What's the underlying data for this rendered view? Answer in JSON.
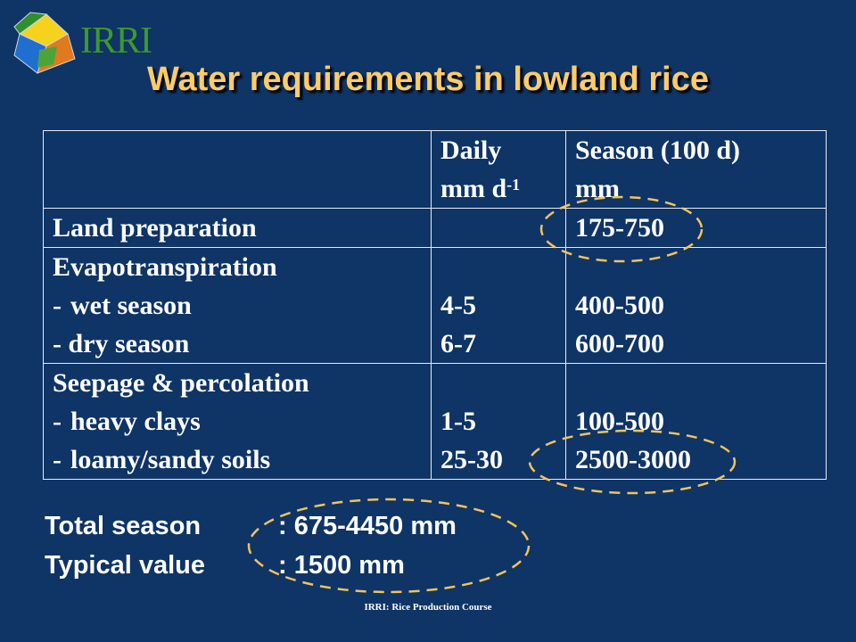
{
  "logo": {
    "text": "IRRI",
    "colors": [
      "#2f8f2e",
      "#f5d21e",
      "#1e6fd0",
      "#e07a1f"
    ]
  },
  "title": "Water requirements in lowland rice",
  "table": {
    "header": {
      "col1_line1": "Daily",
      "col1_line2": "mm d",
      "col1_sup": "-1",
      "col2_line1": "Season (100 d)",
      "col2_line2": "mm"
    },
    "land_prep": {
      "label": "Land preparation",
      "daily": "",
      "season": "175-750"
    },
    "et": {
      "label": "Evapotranspiration",
      "wet_label": "wet season",
      "wet_daily": "4-5",
      "wet_season": "400-500",
      "dry_label": "- dry season",
      "dry_daily": "6-7",
      "dry_season": "600-700"
    },
    "sp": {
      "label": "Seepage & percolation",
      "clay_label": "heavy clays",
      "clay_daily": "1-5",
      "clay_season": "100-500",
      "loam_label": "loamy/sandy soils",
      "loam_daily": "25-30",
      "loam_season": "2500-3000"
    },
    "dash": "-"
  },
  "totals": {
    "total_label": "Total season",
    "total_value": ":  675-4450 mm",
    "typical_label": "Typical value",
    "typical_value": ": 1500 mm"
  },
  "footer": "IRRI: Rice Production Course",
  "colors": {
    "background": "#0f3466",
    "title": "#ffcc66",
    "highlight": "#f2c45a"
  }
}
